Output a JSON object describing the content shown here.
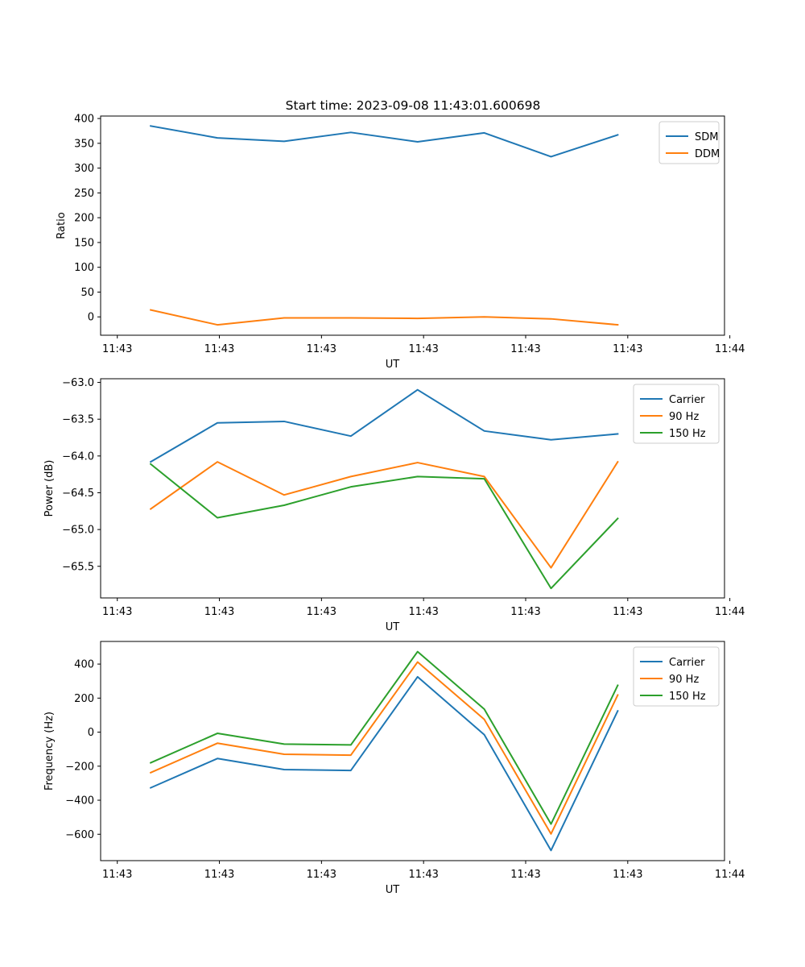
{
  "title": "Start time: 2023-09-08 11:43:01.600698",
  "chart_data": [
    {
      "type": "line",
      "title": "Start time: 2023-09-08 11:43:01.600698",
      "xlabel": "UT",
      "ylabel": "Ratio",
      "x_tick_labels": [
        "11:43",
        "11:43",
        "11:43",
        "11:43",
        "11:43",
        "11:43",
        "11:44"
      ],
      "x_range": [
        -0.25,
        9.1
      ],
      "x": [
        0.5,
        1.5,
        2.5,
        3.5,
        4.5,
        5.5,
        6.5,
        7.5
      ],
      "ylim": [
        -37,
        405
      ],
      "y_ticks": [
        0,
        50,
        100,
        150,
        200,
        250,
        300,
        350,
        400
      ],
      "legend_position": "upper right",
      "series": [
        {
          "name": "SDM",
          "color": "#1f77b4",
          "values": [
            385,
            361,
            354,
            372,
            353,
            371,
            323,
            367
          ]
        },
        {
          "name": "DDM",
          "color": "#ff7f0e",
          "values": [
            14,
            -16,
            -2,
            -2,
            -3,
            0,
            -4,
            -16
          ]
        }
      ]
    },
    {
      "type": "line",
      "xlabel": "UT",
      "ylabel": "Power (dB)",
      "x_tick_labels": [
        "11:43",
        "11:43",
        "11:43",
        "11:43",
        "11:43",
        "11:43",
        "11:44"
      ],
      "x_range": [
        -0.25,
        9.1
      ],
      "x": [
        0.5,
        1.5,
        2.5,
        3.5,
        4.5,
        5.5,
        6.5,
        7.5
      ],
      "ylim": [
        -65.93,
        -62.95
      ],
      "y_ticks": [
        -65.5,
        -65.0,
        -64.5,
        -64.0,
        -63.5,
        -63.0
      ],
      "y_tick_labels": [
        "−65.5",
        "−65.0",
        "−64.5",
        "−64.0",
        "−63.5",
        "−63.0"
      ],
      "legend_position": "upper right",
      "series": [
        {
          "name": "Carrier",
          "color": "#1f77b4",
          "values": [
            -64.08,
            -63.55,
            -63.53,
            -63.73,
            -63.1,
            -63.66,
            -63.78,
            -63.7
          ]
        },
        {
          "name": "90 Hz",
          "color": "#ff7f0e",
          "values": [
            -64.72,
            -64.08,
            -64.53,
            -64.28,
            -64.09,
            -64.28,
            -65.52,
            -64.08
          ]
        },
        {
          "name": "150 Hz",
          "color": "#2ca02c",
          "values": [
            -64.11,
            -64.84,
            -64.67,
            -64.42,
            -64.28,
            -64.31,
            -65.8,
            -64.85
          ]
        }
      ]
    },
    {
      "type": "line",
      "xlabel": "UT",
      "ylabel": "Frequency (Hz)",
      "x_tick_labels": [
        "11:43",
        "11:43",
        "11:43",
        "11:43",
        "11:43",
        "11:43",
        "11:44"
      ],
      "x_range": [
        -0.25,
        9.1
      ],
      "x": [
        0.5,
        1.5,
        2.5,
        3.5,
        4.5,
        5.5,
        6.5,
        7.5
      ],
      "ylim": [
        -755,
        533
      ],
      "y_ticks": [
        -600,
        -400,
        -200,
        0,
        200,
        400
      ],
      "y_tick_labels": [
        "−600",
        "−400",
        "−200",
        "0",
        "200",
        "400"
      ],
      "legend_position": "upper right",
      "series": [
        {
          "name": "Carrier",
          "color": "#1f77b4",
          "values": [
            -327,
            -155,
            -220,
            -225,
            325,
            -15,
            -695,
            125
          ]
        },
        {
          "name": "90 Hz",
          "color": "#ff7f0e",
          "values": [
            -238,
            -65,
            -130,
            -135,
            412,
            75,
            -598,
            218
          ]
        },
        {
          "name": "150 Hz",
          "color": "#2ca02c",
          "values": [
            -180,
            -7,
            -70,
            -75,
            473,
            135,
            -540,
            275
          ]
        }
      ]
    }
  ]
}
